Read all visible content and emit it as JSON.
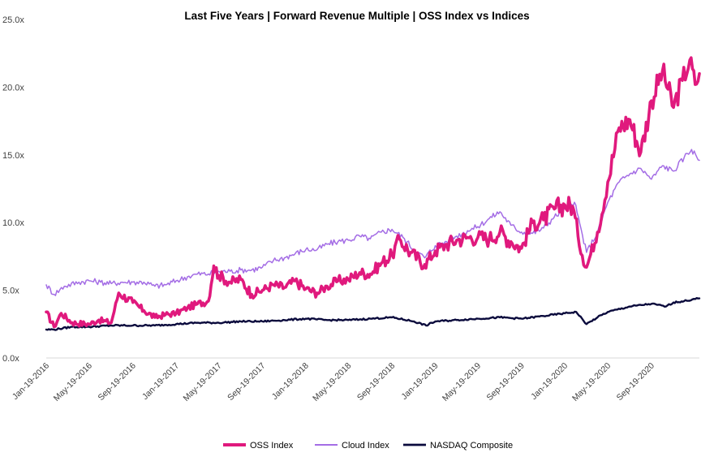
{
  "chart_data": {
    "type": "line",
    "title": "Last Five Years | Forward Revenue Multiple | OSS Index vs Indices",
    "xlabel": "",
    "ylabel": "",
    "x_tick_labels": [
      "Jan-19-2016",
      "May-19-2016",
      "Sep-19-2016",
      "Jan-19-2017",
      "May-19-2017",
      "Sep-19-2017",
      "Jan-19-2018",
      "May-19-2018",
      "Sep-19-2018",
      "Jan-19-2019",
      "May-19-2019",
      "Sep-19-2019",
      "Jan-19-2020",
      "May-19-2020",
      "Sep-19-2020"
    ],
    "y_tick_labels": [
      "0.0x",
      "5.0x",
      "10.0x",
      "15.0x",
      "20.0x",
      "25.0x"
    ],
    "ylim": [
      0,
      25
    ],
    "grid": false,
    "legend_position": "bottom",
    "series": [
      {
        "name": "OSS Index",
        "color": "#e0197d",
        "points": [
          [
            "2016-01-19",
            3.4
          ],
          [
            "2016-02-10",
            2.3
          ],
          [
            "2016-03-01",
            3.3
          ],
          [
            "2016-04-01",
            2.6
          ],
          [
            "2016-05-19",
            2.5
          ],
          [
            "2016-06-15",
            2.8
          ],
          [
            "2016-07-20",
            2.6
          ],
          [
            "2016-08-10",
            4.8
          ],
          [
            "2016-09-19",
            4.1
          ],
          [
            "2016-10-20",
            3.5
          ],
          [
            "2016-11-20",
            3.0
          ],
          [
            "2016-12-20",
            3.2
          ],
          [
            "2017-01-19",
            3.3
          ],
          [
            "2017-02-20",
            3.7
          ],
          [
            "2017-03-20",
            4.0
          ],
          [
            "2017-04-20",
            4.2
          ],
          [
            "2017-05-05",
            6.8
          ],
          [
            "2017-05-19",
            6.1
          ],
          [
            "2017-06-20",
            5.6
          ],
          [
            "2017-07-20",
            5.8
          ],
          [
            "2017-08-20",
            4.7
          ],
          [
            "2017-09-19",
            5.0
          ],
          [
            "2017-10-20",
            5.4
          ],
          [
            "2017-11-20",
            5.2
          ],
          [
            "2017-12-20",
            5.7
          ],
          [
            "2018-01-19",
            5.1
          ],
          [
            "2018-02-20",
            4.8
          ],
          [
            "2018-03-20",
            5.3
          ],
          [
            "2018-04-20",
            5.7
          ],
          [
            "2018-05-19",
            5.8
          ],
          [
            "2018-06-20",
            6.3
          ],
          [
            "2018-07-20",
            6.2
          ],
          [
            "2018-08-20",
            7.0
          ],
          [
            "2018-09-19",
            7.6
          ],
          [
            "2018-10-10",
            8.8
          ],
          [
            "2018-11-10",
            7.8
          ],
          [
            "2018-12-20",
            6.9
          ],
          [
            "2019-01-19",
            7.9
          ],
          [
            "2019-02-20",
            8.4
          ],
          [
            "2019-03-20",
            8.7
          ],
          [
            "2019-04-20",
            8.9
          ],
          [
            "2019-05-19",
            8.9
          ],
          [
            "2019-06-20",
            8.8
          ],
          [
            "2019-07-20",
            9.3
          ],
          [
            "2019-08-20",
            8.6
          ],
          [
            "2019-09-19",
            8.1
          ],
          [
            "2019-10-20",
            10.0
          ],
          [
            "2019-11-20",
            10.2
          ],
          [
            "2019-12-20",
            11.0
          ],
          [
            "2020-01-19",
            11.3
          ],
          [
            "2020-02-10",
            11.2
          ],
          [
            "2020-02-25",
            9.0
          ],
          [
            "2020-03-20",
            6.7
          ],
          [
            "2020-04-20",
            9.3
          ],
          [
            "2020-05-19",
            13.0
          ],
          [
            "2020-06-20",
            17.0
          ],
          [
            "2020-07-20",
            17.6
          ],
          [
            "2020-08-20",
            15.2
          ],
          [
            "2020-09-19",
            19.0
          ],
          [
            "2020-10-20",
            21.2
          ],
          [
            "2020-11-20",
            18.5
          ],
          [
            "2020-12-15",
            20.5
          ],
          [
            "2021-01-05",
            22.0
          ],
          [
            "2021-01-20",
            20.2
          ],
          [
            "2021-02-01",
            21.0
          ]
        ]
      },
      {
        "name": "Cloud Index",
        "color": "#a46de5",
        "points": [
          [
            "2016-01-19",
            5.4
          ],
          [
            "2016-02-10",
            4.7
          ],
          [
            "2016-03-10",
            5.3
          ],
          [
            "2016-04-20",
            5.6
          ],
          [
            "2016-05-19",
            5.7
          ],
          [
            "2016-06-20",
            5.6
          ],
          [
            "2016-07-20",
            5.5
          ],
          [
            "2016-08-20",
            5.6
          ],
          [
            "2016-09-19",
            5.6
          ],
          [
            "2016-10-20",
            5.6
          ],
          [
            "2016-11-20",
            5.3
          ],
          [
            "2016-12-20",
            5.4
          ],
          [
            "2017-01-19",
            5.7
          ],
          [
            "2017-02-20",
            6.0
          ],
          [
            "2017-03-20",
            6.2
          ],
          [
            "2017-04-20",
            6.2
          ],
          [
            "2017-05-19",
            6.4
          ],
          [
            "2017-06-20",
            6.4
          ],
          [
            "2017-07-20",
            6.5
          ],
          [
            "2017-08-20",
            6.5
          ],
          [
            "2017-09-19",
            6.7
          ],
          [
            "2017-10-20",
            7.2
          ],
          [
            "2017-11-20",
            7.4
          ],
          [
            "2017-12-20",
            7.7
          ],
          [
            "2018-01-19",
            8.0
          ],
          [
            "2018-02-20",
            8.0
          ],
          [
            "2018-03-20",
            8.4
          ],
          [
            "2018-04-20",
            8.6
          ],
          [
            "2018-05-19",
            8.7
          ],
          [
            "2018-06-20",
            9.0
          ],
          [
            "2018-07-20",
            8.8
          ],
          [
            "2018-08-20",
            9.3
          ],
          [
            "2018-09-19",
            9.5
          ],
          [
            "2018-10-20",
            8.9
          ],
          [
            "2018-11-20",
            8.0
          ],
          [
            "2018-12-20",
            7.4
          ],
          [
            "2019-01-19",
            8.3
          ],
          [
            "2019-02-20",
            8.6
          ],
          [
            "2019-03-20",
            9.0
          ],
          [
            "2019-04-20",
            9.4
          ],
          [
            "2019-05-19",
            9.7
          ],
          [
            "2019-06-20",
            10.3
          ],
          [
            "2019-07-20",
            10.8
          ],
          [
            "2019-08-20",
            9.8
          ],
          [
            "2019-09-19",
            9.3
          ],
          [
            "2019-10-20",
            9.2
          ],
          [
            "2019-11-20",
            9.6
          ],
          [
            "2019-12-20",
            10.4
          ],
          [
            "2020-01-19",
            11.0
          ],
          [
            "2020-02-15",
            11.5
          ],
          [
            "2020-03-20",
            7.8
          ],
          [
            "2020-04-20",
            9.3
          ],
          [
            "2020-05-19",
            11.5
          ],
          [
            "2020-06-20",
            13.0
          ],
          [
            "2020-07-20",
            13.6
          ],
          [
            "2020-08-20",
            14.0
          ],
          [
            "2020-09-19",
            13.2
          ],
          [
            "2020-10-20",
            14.2
          ],
          [
            "2020-11-20",
            13.8
          ],
          [
            "2020-12-20",
            14.8
          ],
          [
            "2021-01-10",
            15.4
          ],
          [
            "2021-02-01",
            14.6
          ]
        ]
      },
      {
        "name": "NASDAQ Composite",
        "color": "#0a0a3c",
        "points": [
          [
            "2016-01-19",
            2.1
          ],
          [
            "2016-02-10",
            2.1
          ],
          [
            "2016-04-01",
            2.3
          ],
          [
            "2016-05-19",
            2.3
          ],
          [
            "2016-07-20",
            2.4
          ],
          [
            "2016-09-19",
            2.4
          ],
          [
            "2016-11-20",
            2.4
          ],
          [
            "2017-01-19",
            2.5
          ],
          [
            "2017-03-20",
            2.6
          ],
          [
            "2017-05-19",
            2.6
          ],
          [
            "2017-07-20",
            2.7
          ],
          [
            "2017-09-19",
            2.7
          ],
          [
            "2017-11-20",
            2.8
          ],
          [
            "2018-01-19",
            2.9
          ],
          [
            "2018-03-20",
            2.8
          ],
          [
            "2018-05-19",
            2.8
          ],
          [
            "2018-07-20",
            2.9
          ],
          [
            "2018-09-19",
            3.0
          ],
          [
            "2018-11-20",
            2.7
          ],
          [
            "2018-12-24",
            2.4
          ],
          [
            "2019-01-19",
            2.7
          ],
          [
            "2019-03-20",
            2.8
          ],
          [
            "2019-05-19",
            2.9
          ],
          [
            "2019-07-20",
            3.0
          ],
          [
            "2019-09-19",
            2.9
          ],
          [
            "2019-11-20",
            3.1
          ],
          [
            "2020-01-19",
            3.3
          ],
          [
            "2020-02-20",
            3.4
          ],
          [
            "2020-03-20",
            2.5
          ],
          [
            "2020-04-20",
            3.0
          ],
          [
            "2020-05-19",
            3.4
          ],
          [
            "2020-07-20",
            3.8
          ],
          [
            "2020-09-19",
            4.0
          ],
          [
            "2020-10-30",
            3.8
          ],
          [
            "2020-11-20",
            4.1
          ],
          [
            "2020-12-20",
            4.2
          ],
          [
            "2021-02-01",
            4.4
          ]
        ]
      }
    ]
  }
}
